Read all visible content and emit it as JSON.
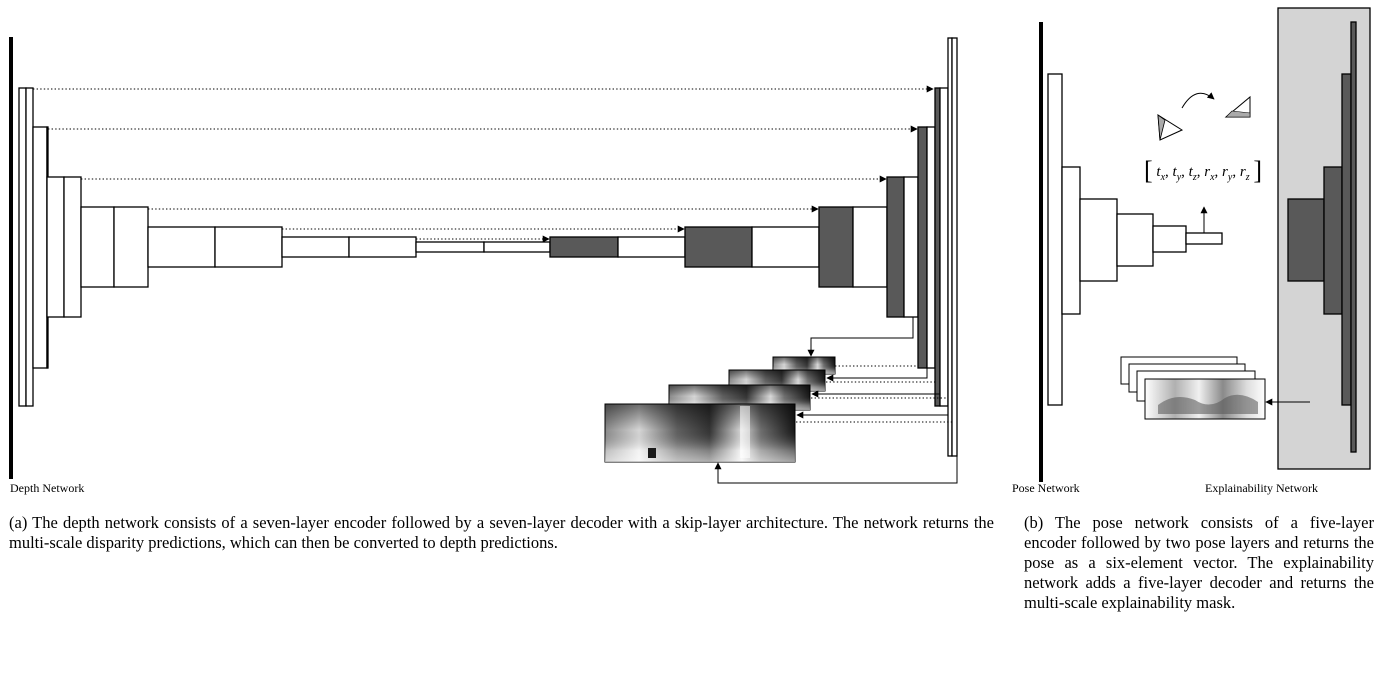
{
  "depth_network": {
    "label": "Depth Network",
    "encoder_layers": 7,
    "decoder_layers": 7,
    "disparity_outputs": 4
  },
  "pose_network": {
    "label": "Pose Network",
    "pose_vector": {
      "open": "[",
      "close": "]",
      "terms": [
        {
          "base": "t",
          "sub": "x"
        },
        {
          "base": "t",
          "sub": "y"
        },
        {
          "base": "t",
          "sub": "z"
        },
        {
          "base": "r",
          "sub": "x"
        },
        {
          "base": "r",
          "sub": "y"
        },
        {
          "base": "r",
          "sub": "z"
        }
      ]
    }
  },
  "explainability_network": {
    "label": "Explainability Network",
    "background_color": "#d4d4d4"
  },
  "colors": {
    "decoder_fill": "#595959",
    "line": "#000000"
  },
  "captions": {
    "a": "(a) The depth network consists of a seven-layer encoder followed by a seven-layer decoder with a skip-layer architecture. The network returns the multi-scale disparity predictions, which can then be converted to depth predictions.",
    "b": "(b) The pose network consists of a five-layer encoder followed by two pose layers and returns the pose as a six-element vector. The explainability network adds a five-layer decoder and returns the multi-scale explainability mask."
  }
}
